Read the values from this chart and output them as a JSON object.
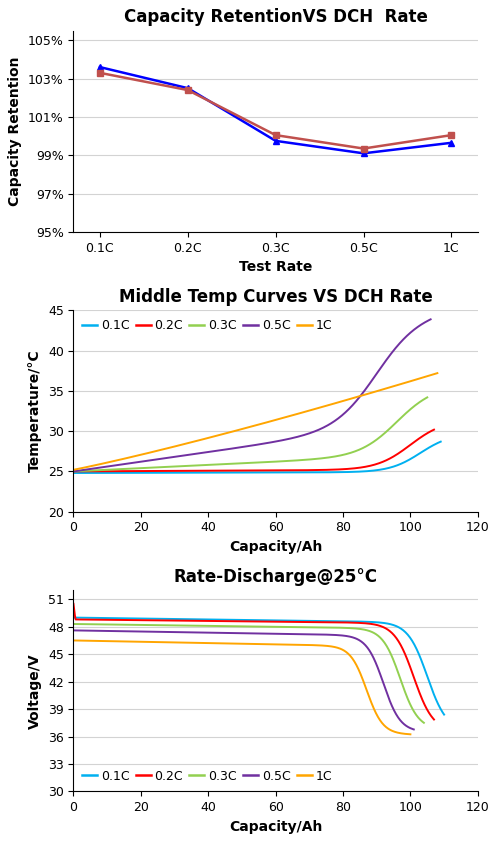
{
  "chart1": {
    "title": "Capacity RetentionVS DCH  Rate",
    "xlabel": "Test Rate",
    "ylabel": "Capacity Retention",
    "xtick_labels": [
      "0.1C",
      "0.2C",
      "0.3C",
      "0.5C",
      "1C"
    ],
    "ylim": [
      0.95,
      1.055
    ],
    "yticks": [
      0.95,
      0.97,
      0.99,
      1.01,
      1.03,
      1.05
    ],
    "ytick_labels": [
      "95%",
      "97%",
      "99%",
      "101%",
      "103%",
      "105%"
    ],
    "series": [
      {
        "color": "#0000FF",
        "marker": "^",
        "values": [
          1.036,
          1.025,
          0.9975,
          0.991,
          0.9965
        ]
      },
      {
        "color": "#C0504D",
        "marker": "s",
        "values": [
          1.033,
          1.024,
          1.0005,
          0.9935,
          1.0005
        ]
      }
    ]
  },
  "chart2": {
    "title": "Middle Temp Curves VS DCH Rate",
    "xlabel": "Capacity/Ah",
    "ylabel": "Temperature/°C",
    "xlim": [
      0,
      120
    ],
    "ylim": [
      20,
      45
    ],
    "xticks": [
      0,
      20,
      40,
      60,
      80,
      100,
      120
    ],
    "yticks": [
      20,
      25,
      30,
      35,
      40,
      45
    ],
    "legend_labels": [
      "0.1C",
      "0.2C",
      "0.3C",
      "0.5C",
      "1C"
    ],
    "legend_colors": [
      "#00B0F0",
      "#FF0000",
      "#92D050",
      "#7030A0",
      "#FFA500"
    ]
  },
  "chart3": {
    "title": "Rate-Discharge@25°C",
    "xlabel": "Capacity/Ah",
    "ylabel": "Voltage/V",
    "xlim": [
      0,
      120
    ],
    "ylim": [
      30,
      52
    ],
    "xticks": [
      0,
      20,
      40,
      60,
      80,
      100,
      120
    ],
    "yticks": [
      30,
      33,
      36,
      39,
      42,
      45,
      48,
      51
    ],
    "legend_labels": [
      "0.1C",
      "0.2C",
      "0.3C",
      "0.5C",
      "1C"
    ],
    "legend_colors": [
      "#00B0F0",
      "#FF0000",
      "#92D050",
      "#7030A0",
      "#FFA500"
    ]
  },
  "title_fontsize": 12,
  "label_fontsize": 10,
  "tick_fontsize": 9,
  "legend_fontsize": 9
}
